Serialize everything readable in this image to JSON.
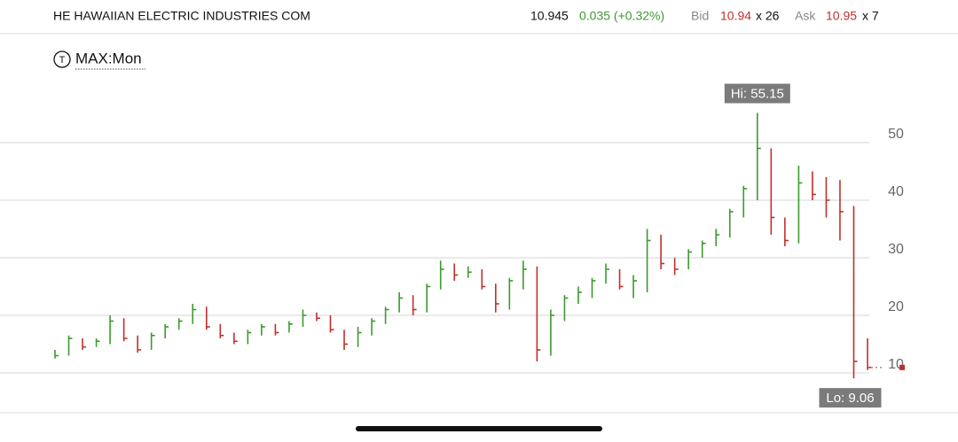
{
  "header": {
    "title": "HE HAWAIIAN ELECTRIC INDUSTRIES COM",
    "last": 10.945,
    "change": "0.035 (+0.32%)",
    "bid_label": "Bid",
    "bid": "10.94",
    "bid_size": "x 26",
    "ask_label": "Ask",
    "ask": "10.95",
    "ask_size": "x 7",
    "range_icon": "T",
    "range": "MAX:Mon"
  },
  "chart_data": {
    "type": "ohlc",
    "high": [
      14,
      16.5,
      16,
      16,
      20,
      19.5,
      16.5,
      17,
      18.5,
      19.5,
      22,
      21.5,
      18.5,
      17,
      17.5,
      18.5,
      18.5,
      19,
      21,
      20.5,
      20,
      17.5,
      18,
      19.5,
      21.5,
      24,
      23.5,
      25.5,
      29.5,
      29,
      28.5,
      28,
      25.5,
      26.5,
      29.5,
      28.5,
      21,
      23.5,
      25,
      26.5,
      29,
      28,
      27,
      35,
      34,
      30,
      31.5,
      33,
      35,
      38.5,
      42.5,
      55.15,
      49,
      37,
      46,
      45,
      44,
      43.5,
      39,
      16
    ],
    "low": [
      12.5,
      13,
      14,
      14.5,
      15,
      15.5,
      13.5,
      14,
      16,
      17.5,
      18.5,
      17.5,
      16,
      15,
      15,
      16.5,
      16.5,
      17,
      18,
      19,
      17,
      14,
      14.5,
      16.5,
      18.5,
      20.5,
      20,
      20.5,
      24.5,
      26,
      26.5,
      24.5,
      20.5,
      21,
      24.5,
      12,
      13,
      19,
      22,
      23,
      25.5,
      24.5,
      23,
      24,
      28,
      27,
      28,
      30,
      32,
      33.5,
      37,
      40,
      34,
      32,
      32.5,
      40,
      37,
      33,
      9.06,
      10.5
    ],
    "close": [
      13,
      16,
      14.5,
      15.5,
      19,
      16,
      14,
      16.5,
      18,
      19,
      21,
      18,
      16.5,
      15.5,
      17,
      18,
      17,
      18.5,
      20,
      19.5,
      17.5,
      15,
      17,
      19,
      21,
      23,
      21,
      25,
      28,
      27,
      27.5,
      25,
      22,
      26,
      28,
      14,
      20,
      23,
      24,
      26,
      28,
      25,
      26,
      33,
      29,
      28,
      31,
      32.5,
      34,
      38,
      42,
      49,
      37,
      33,
      43,
      41,
      40,
      38,
      12,
      10.945
    ],
    "up_color": "#3c9a2e",
    "down_color": "#c2302b",
    "ylim": [
      3,
      60
    ],
    "yticks": [
      10,
      20,
      30,
      40,
      50
    ],
    "grid": true,
    "annotations": {
      "high": "Hi: 55.15",
      "low": "Lo: 9.06"
    }
  }
}
